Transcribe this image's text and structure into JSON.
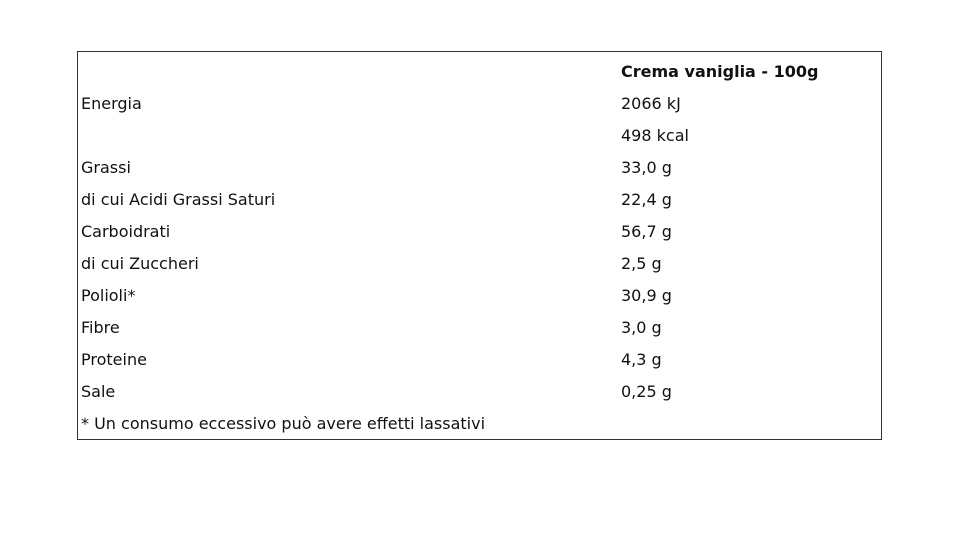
{
  "table": {
    "header": [
      "",
      "Crema vaniglia - 100g"
    ],
    "rows": [
      [
        "Energia",
        "2066 kJ"
      ],
      [
        "",
        "498 kcal"
      ],
      [
        "Grassi",
        "33,0 g"
      ],
      [
        "di cui Acidi Grassi Saturi",
        "22,4 g"
      ],
      [
        "Carboidrati",
        "56,7 g"
      ],
      [
        "di cui Zuccheri",
        "2,5 g"
      ],
      [
        "Polioli*",
        "30,9 g"
      ],
      [
        "Fibre",
        "3,0 g"
      ],
      [
        "Proteine",
        "4,3 g"
      ],
      [
        "Sale",
        "0,25 g"
      ]
    ],
    "footnote": "* Un consumo eccessivo può avere effetti lassativi"
  }
}
